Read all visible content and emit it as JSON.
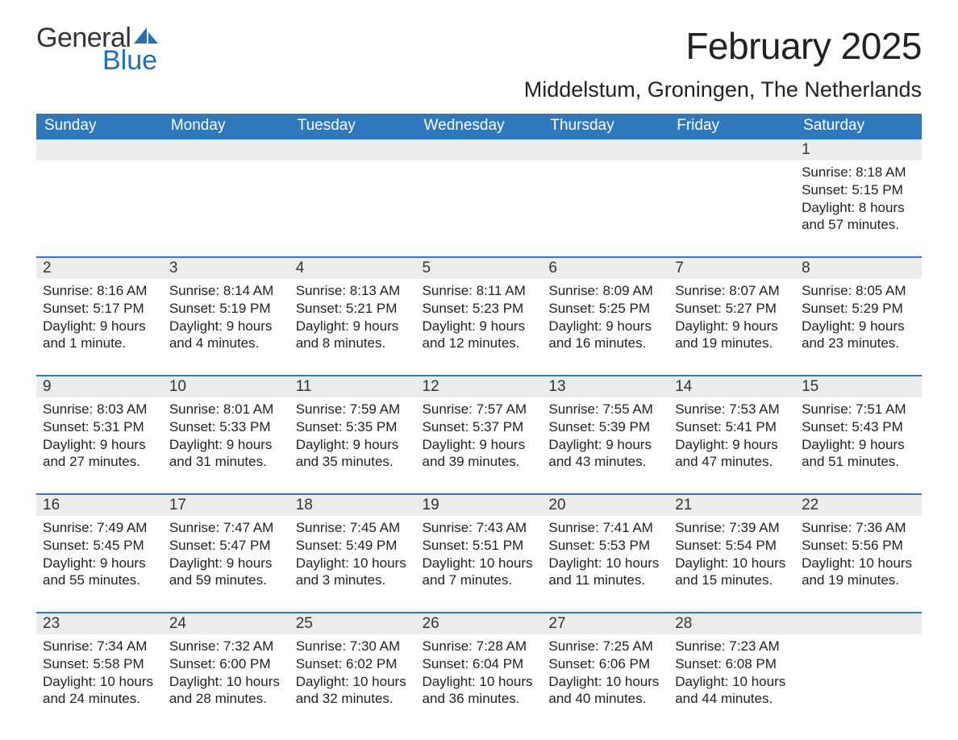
{
  "logo": {
    "word1": "General",
    "word2": "Blue"
  },
  "title": "February 2025",
  "location": "Middelstum, Groningen, The Netherlands",
  "accent_color": "#2f78bb",
  "daynum_bg": "#ececec",
  "weekdays": [
    "Sunday",
    "Monday",
    "Tuesday",
    "Wednesday",
    "Thursday",
    "Friday",
    "Saturday"
  ],
  "weeks": [
    [
      null,
      null,
      null,
      null,
      null,
      null,
      {
        "n": "1",
        "sr": "Sunrise: 8:18 AM",
        "ss": "Sunset: 5:15 PM",
        "d1": "Daylight: 8 hours",
        "d2": "and 57 minutes."
      }
    ],
    [
      {
        "n": "2",
        "sr": "Sunrise: 8:16 AM",
        "ss": "Sunset: 5:17 PM",
        "d1": "Daylight: 9 hours",
        "d2": "and 1 minute."
      },
      {
        "n": "3",
        "sr": "Sunrise: 8:14 AM",
        "ss": "Sunset: 5:19 PM",
        "d1": "Daylight: 9 hours",
        "d2": "and 4 minutes."
      },
      {
        "n": "4",
        "sr": "Sunrise: 8:13 AM",
        "ss": "Sunset: 5:21 PM",
        "d1": "Daylight: 9 hours",
        "d2": "and 8 minutes."
      },
      {
        "n": "5",
        "sr": "Sunrise: 8:11 AM",
        "ss": "Sunset: 5:23 PM",
        "d1": "Daylight: 9 hours",
        "d2": "and 12 minutes."
      },
      {
        "n": "6",
        "sr": "Sunrise: 8:09 AM",
        "ss": "Sunset: 5:25 PM",
        "d1": "Daylight: 9 hours",
        "d2": "and 16 minutes."
      },
      {
        "n": "7",
        "sr": "Sunrise: 8:07 AM",
        "ss": "Sunset: 5:27 PM",
        "d1": "Daylight: 9 hours",
        "d2": "and 19 minutes."
      },
      {
        "n": "8",
        "sr": "Sunrise: 8:05 AM",
        "ss": "Sunset: 5:29 PM",
        "d1": "Daylight: 9 hours",
        "d2": "and 23 minutes."
      }
    ],
    [
      {
        "n": "9",
        "sr": "Sunrise: 8:03 AM",
        "ss": "Sunset: 5:31 PM",
        "d1": "Daylight: 9 hours",
        "d2": "and 27 minutes."
      },
      {
        "n": "10",
        "sr": "Sunrise: 8:01 AM",
        "ss": "Sunset: 5:33 PM",
        "d1": "Daylight: 9 hours",
        "d2": "and 31 minutes."
      },
      {
        "n": "11",
        "sr": "Sunrise: 7:59 AM",
        "ss": "Sunset: 5:35 PM",
        "d1": "Daylight: 9 hours",
        "d2": "and 35 minutes."
      },
      {
        "n": "12",
        "sr": "Sunrise: 7:57 AM",
        "ss": "Sunset: 5:37 PM",
        "d1": "Daylight: 9 hours",
        "d2": "and 39 minutes."
      },
      {
        "n": "13",
        "sr": "Sunrise: 7:55 AM",
        "ss": "Sunset: 5:39 PM",
        "d1": "Daylight: 9 hours",
        "d2": "and 43 minutes."
      },
      {
        "n": "14",
        "sr": "Sunrise: 7:53 AM",
        "ss": "Sunset: 5:41 PM",
        "d1": "Daylight: 9 hours",
        "d2": "and 47 minutes."
      },
      {
        "n": "15",
        "sr": "Sunrise: 7:51 AM",
        "ss": "Sunset: 5:43 PM",
        "d1": "Daylight: 9 hours",
        "d2": "and 51 minutes."
      }
    ],
    [
      {
        "n": "16",
        "sr": "Sunrise: 7:49 AM",
        "ss": "Sunset: 5:45 PM",
        "d1": "Daylight: 9 hours",
        "d2": "and 55 minutes."
      },
      {
        "n": "17",
        "sr": "Sunrise: 7:47 AM",
        "ss": "Sunset: 5:47 PM",
        "d1": "Daylight: 9 hours",
        "d2": "and 59 minutes."
      },
      {
        "n": "18",
        "sr": "Sunrise: 7:45 AM",
        "ss": "Sunset: 5:49 PM",
        "d1": "Daylight: 10 hours",
        "d2": "and 3 minutes."
      },
      {
        "n": "19",
        "sr": "Sunrise: 7:43 AM",
        "ss": "Sunset: 5:51 PM",
        "d1": "Daylight: 10 hours",
        "d2": "and 7 minutes."
      },
      {
        "n": "20",
        "sr": "Sunrise: 7:41 AM",
        "ss": "Sunset: 5:53 PM",
        "d1": "Daylight: 10 hours",
        "d2": "and 11 minutes."
      },
      {
        "n": "21",
        "sr": "Sunrise: 7:39 AM",
        "ss": "Sunset: 5:54 PM",
        "d1": "Daylight: 10 hours",
        "d2": "and 15 minutes."
      },
      {
        "n": "22",
        "sr": "Sunrise: 7:36 AM",
        "ss": "Sunset: 5:56 PM",
        "d1": "Daylight: 10 hours",
        "d2": "and 19 minutes."
      }
    ],
    [
      {
        "n": "23",
        "sr": "Sunrise: 7:34 AM",
        "ss": "Sunset: 5:58 PM",
        "d1": "Daylight: 10 hours",
        "d2": "and 24 minutes."
      },
      {
        "n": "24",
        "sr": "Sunrise: 7:32 AM",
        "ss": "Sunset: 6:00 PM",
        "d1": "Daylight: 10 hours",
        "d2": "and 28 minutes."
      },
      {
        "n": "25",
        "sr": "Sunrise: 7:30 AM",
        "ss": "Sunset: 6:02 PM",
        "d1": "Daylight: 10 hours",
        "d2": "and 32 minutes."
      },
      {
        "n": "26",
        "sr": "Sunrise: 7:28 AM",
        "ss": "Sunset: 6:04 PM",
        "d1": "Daylight: 10 hours",
        "d2": "and 36 minutes."
      },
      {
        "n": "27",
        "sr": "Sunrise: 7:25 AM",
        "ss": "Sunset: 6:06 PM",
        "d1": "Daylight: 10 hours",
        "d2": "and 40 minutes."
      },
      {
        "n": "28",
        "sr": "Sunrise: 7:23 AM",
        "ss": "Sunset: 6:08 PM",
        "d1": "Daylight: 10 hours",
        "d2": "and 44 minutes."
      },
      null
    ]
  ]
}
